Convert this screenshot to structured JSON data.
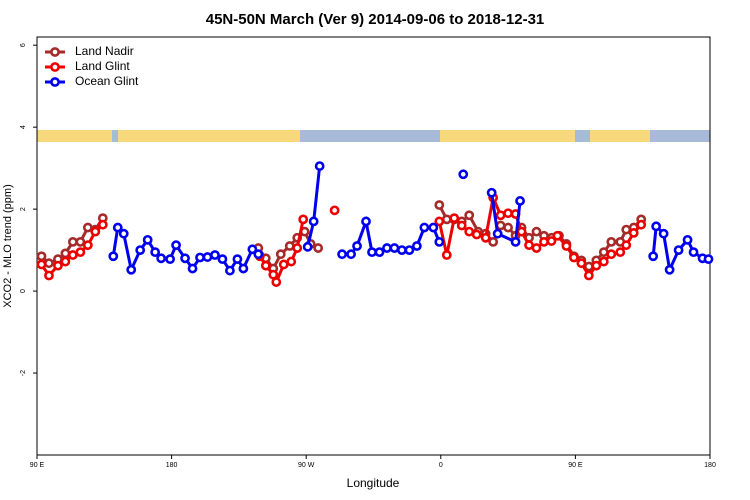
{
  "chart_data": {
    "type": "line",
    "title": "45N-50N March (Ver 9)   2014-09-06 to 2018-12-31",
    "xlabel": "Longitude",
    "ylabel": "XCO2 - MLO trend (ppm)",
    "xlim": [
      90,
      540
    ],
    "xticks": [
      {
        "value": 90,
        "label": "90 E"
      },
      {
        "value": 180,
        "label": "180"
      },
      {
        "value": 270,
        "label": "90 W"
      },
      {
        "value": 360,
        "label": "0"
      },
      {
        "value": 450,
        "label": "90 E"
      },
      {
        "value": 540,
        "label": "180"
      }
    ],
    "ylim": [
      -4,
      6.2
    ],
    "yticks": [
      -2,
      0,
      2,
      4,
      6
    ],
    "legend": "top-left",
    "series": [
      {
        "name": "Land Nadir",
        "color": "#a52a2a",
        "x": [
          93,
          98,
          104,
          109,
          114,
          119,
          124,
          129,
          134,
          null,
          238,
          243,
          248,
          253,
          259,
          264,
          269,
          273,
          278,
          null,
          359,
          364,
          369,
          374,
          379,
          385,
          390,
          395,
          400,
          405,
          410,
          414,
          419,
          424,
          429,
          434,
          439,
          444,
          449,
          454,
          459,
          464,
          469,
          474,
          480,
          484,
          489,
          494
        ],
        "values": [
          0.85,
          0.68,
          0.78,
          0.92,
          1.2,
          1.2,
          1.55,
          1.5,
          1.78,
          null,
          1.05,
          0.8,
          0.55,
          0.9,
          1.1,
          1.3,
          1.45,
          1.15,
          1.05,
          null,
          2.1,
          1.75,
          1.75,
          1.7,
          1.85,
          1.45,
          1.4,
          1.2,
          1.6,
          1.55,
          1.35,
          1.55,
          1.3,
          1.45,
          1.35,
          1.3,
          1.35,
          1.15,
          0.85,
          0.75,
          0.6,
          0.75,
          0.95,
          1.2,
          1.2,
          1.5,
          1.55,
          1.75
        ]
      },
      {
        "name": "Land Glint",
        "color": "#ee0000",
        "x": [
          93,
          98,
          104,
          109,
          114,
          119,
          124,
          129,
          134,
          null,
          239,
          243,
          248,
          250,
          255,
          260,
          264,
          268,
          null,
          289,
          null,
          359,
          364,
          369,
          374,
          379,
          384,
          390,
          395,
          400,
          405,
          410,
          414,
          419,
          424,
          429,
          434,
          438,
          444,
          449,
          454,
          459,
          464,
          469,
          474,
          480,
          484,
          489,
          494
        ],
        "values": [
          0.65,
          0.38,
          0.62,
          0.72,
          0.88,
          0.95,
          1.12,
          1.45,
          1.62,
          null,
          0.85,
          0.62,
          0.4,
          0.22,
          0.65,
          0.72,
          1.05,
          1.75,
          null,
          1.97,
          null,
          1.7,
          0.88,
          1.78,
          1.6,
          1.45,
          1.38,
          1.3,
          2.28,
          1.85,
          1.9,
          1.88,
          1.45,
          1.12,
          1.05,
          1.2,
          1.22,
          1.35,
          1.1,
          0.82,
          0.68,
          0.38,
          0.62,
          0.72,
          0.9,
          0.95,
          1.12,
          1.42,
          1.62
        ]
      },
      {
        "name": "Ocean Glint",
        "color": "#0000ee",
        "x": [
          141,
          144,
          148,
          153,
          159,
          164,
          169,
          173,
          179,
          183,
          189,
          194,
          199,
          204,
          209,
          214,
          219,
          224,
          228,
          234,
          238,
          null,
          271,
          275,
          279,
          null,
          294,
          300,
          304,
          310,
          314,
          319,
          324,
          329,
          334,
          339,
          344,
          349,
          355,
          359,
          null,
          375,
          null,
          394,
          398,
          410,
          413,
          null,
          502,
          504,
          509,
          513,
          519,
          525,
          529,
          535,
          539
        ],
        "values": [
          0.85,
          1.55,
          1.4,
          0.52,
          1.0,
          1.25,
          0.95,
          0.8,
          0.78,
          1.12,
          0.8,
          0.55,
          0.82,
          0.83,
          0.88,
          0.78,
          0.5,
          0.78,
          0.55,
          1.02,
          0.9,
          null,
          1.08,
          1.7,
          3.05,
          null,
          0.9,
          0.9,
          1.1,
          1.7,
          0.95,
          0.95,
          1.05,
          1.05,
          1.0,
          1.0,
          1.1,
          1.55,
          1.55,
          1.2,
          null,
          2.85,
          null,
          2.4,
          1.4,
          1.2,
          2.2,
          null,
          0.85,
          1.58,
          1.4,
          0.52,
          1.0,
          1.25,
          0.95,
          0.8,
          0.78
        ]
      }
    ]
  }
}
